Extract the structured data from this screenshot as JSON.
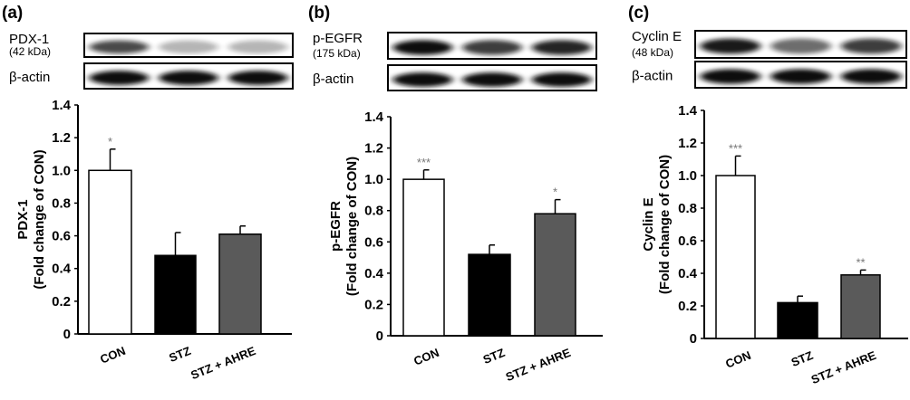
{
  "chart_data": [
    {
      "type": "bar",
      "panel": "(a)",
      "blot_label": "PDX-1",
      "blot_sublabel": "(42 kDa)",
      "loading_label": "β-actin",
      "ylabel_line1": "PDX-1",
      "ylabel_line2": "(Fold change of CON)",
      "categories": [
        "CON",
        "STZ",
        "STZ + AHRE"
      ],
      "values": [
        1.0,
        0.48,
        0.61
      ],
      "errors": [
        0.13,
        0.14,
        0.05
      ],
      "significance": [
        "*",
        "",
        ""
      ],
      "bar_colors": [
        "#ffffff",
        "#000000",
        "#5a5a5a"
      ],
      "ylim": [
        0,
        1.4
      ],
      "yticks": [
        "0",
        "0.2",
        "0.4",
        "0.6",
        "0.8",
        "1.0",
        "1.2",
        "1.4"
      ],
      "band_intensity": [
        0.75,
        0.3,
        0.3
      ]
    },
    {
      "type": "bar",
      "panel": "(b)",
      "blot_label": "p-EGFR",
      "blot_sublabel": "(175 kDa)",
      "loading_label": "β-actin",
      "ylabel_line1": "p-EGFR",
      "ylabel_line2": "(Fold change of CON)",
      "categories": [
        "CON",
        "STZ",
        "STZ + AHRE"
      ],
      "values": [
        1.0,
        0.52,
        0.78
      ],
      "errors": [
        0.06,
        0.06,
        0.09
      ],
      "significance": [
        "***",
        "",
        "*"
      ],
      "bar_colors": [
        "#ffffff",
        "#000000",
        "#5a5a5a"
      ],
      "ylim": [
        0,
        1.4
      ],
      "yticks": [
        "0",
        "0.2",
        "0.4",
        "0.6",
        "0.8",
        "1.0",
        "1.2",
        "1.4"
      ],
      "band_intensity": [
        1.0,
        0.8,
        0.9
      ]
    },
    {
      "type": "bar",
      "panel": "(c)",
      "blot_label": "Cyclin E",
      "blot_sublabel": "(48 kDa)",
      "loading_label": "β-actin",
      "ylabel_line1": "Cyclin E",
      "ylabel_line2": "(Fold change of CON)",
      "categories": [
        "CON",
        "STZ",
        "STZ + AHRE"
      ],
      "values": [
        1.0,
        0.22,
        0.39
      ],
      "errors": [
        0.12,
        0.04,
        0.03
      ],
      "significance": [
        "***",
        "",
        "**"
      ],
      "bar_colors": [
        "#ffffff",
        "#000000",
        "#5a5a5a"
      ],
      "ylim": [
        0,
        1.4
      ],
      "yticks": [
        "0",
        "0.2",
        "0.4",
        "0.6",
        "0.8",
        "1.0",
        "1.2",
        "1.4"
      ],
      "band_intensity": [
        0.95,
        0.6,
        0.8
      ]
    }
  ]
}
